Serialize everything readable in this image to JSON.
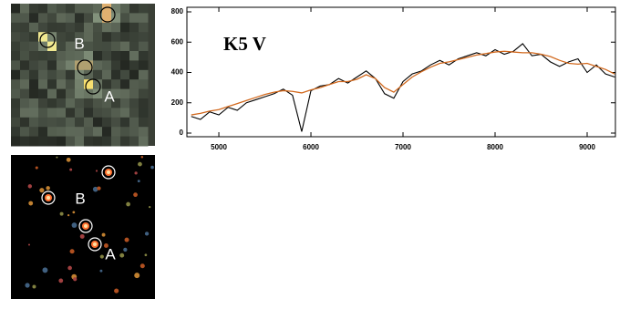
{
  "chart_data": {
    "type": "line",
    "annotation": "K5 V",
    "x": [
      4700,
      4800,
      4900,
      5000,
      5100,
      5200,
      5300,
      5400,
      5500,
      5600,
      5700,
      5800,
      5900,
      6000,
      6100,
      6200,
      6300,
      6400,
      6500,
      6600,
      6700,
      6800,
      6900,
      7000,
      7100,
      7200,
      7300,
      7400,
      7500,
      7600,
      7700,
      7800,
      7900,
      8000,
      8100,
      8200,
      8300,
      8400,
      8500,
      8600,
      8700,
      8800,
      8900,
      9000,
      9100,
      9200,
      9300
    ],
    "series": [
      {
        "color": "#000000",
        "values": [
          110,
          90,
          140,
          120,
          170,
          150,
          200,
          220,
          240,
          260,
          290,
          250,
          10,
          280,
          310,
          320,
          360,
          330,
          370,
          410,
          360,
          260,
          230,
          340,
          390,
          410,
          450,
          480,
          450,
          490,
          510,
          530,
          510,
          550,
          520,
          540,
          590,
          510,
          520,
          470,
          440,
          470,
          490,
          400,
          450,
          390,
          370
        ]
      },
      {
        "color": "#d2691e",
        "values": [
          120,
          130,
          145,
          155,
          175,
          195,
          215,
          235,
          255,
          270,
          280,
          275,
          265,
          285,
          300,
          320,
          340,
          340,
          355,
          385,
          360,
          300,
          270,
          320,
          370,
          405,
          435,
          460,
          470,
          485,
          500,
          515,
          525,
          535,
          540,
          535,
          530,
          530,
          520,
          505,
          480,
          460,
          455,
          460,
          440,
          420,
          390
        ]
      }
    ],
    "xlim": [
      4653,
      9307
    ],
    "ylim": [
      -24,
      830
    ],
    "xticks": [
      5000,
      6000,
      7000,
      8000,
      9000
    ],
    "yticks": [
      0,
      200,
      400,
      600,
      800
    ]
  },
  "images": [
    {
      "labels": [
        "B",
        "A"
      ]
    },
    {
      "labels": [
        "B",
        "A"
      ]
    }
  ]
}
